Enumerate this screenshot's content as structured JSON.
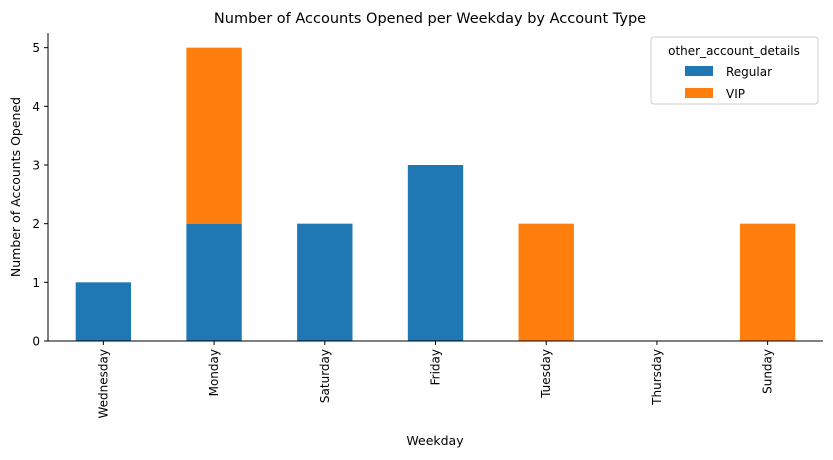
{
  "chart_data": {
    "type": "bar",
    "stacked": true,
    "title": "Number of Accounts Opened per Weekday by Account Type",
    "xlabel": "Weekday",
    "ylabel": "Number of Accounts Opened",
    "categories": [
      "Wednesday",
      "Monday",
      "Saturday",
      "Friday",
      "Tuesday",
      "Thursday",
      "Sunday"
    ],
    "series": [
      {
        "name": "Regular",
        "color": "#1f77b4",
        "values": [
          1,
          2,
          2,
          3,
          0,
          0,
          0
        ]
      },
      {
        "name": "VIP",
        "color": "#ff7f0e",
        "values": [
          0,
          3,
          0,
          0,
          2,
          0,
          2
        ]
      }
    ],
    "ylim": [
      0,
      5.25
    ],
    "yticks": [
      "0",
      "1",
      "2",
      "3",
      "4",
      "5"
    ],
    "legend": {
      "title": "other_account_details",
      "placement": "top-right"
    },
    "grid": false
  }
}
